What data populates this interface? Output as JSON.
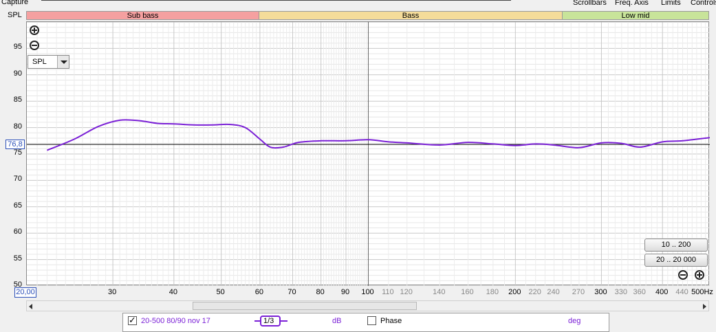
{
  "toolbar": {
    "capture": "Capture",
    "scrollbars": "Scrollbars",
    "freq_axis": "Freq. Axis",
    "limits": "Limits",
    "controls": "Controls"
  },
  "graph": {
    "y_axis_label": "SPL",
    "bands": [
      {
        "label": "Sub bass",
        "color": "#f5a0a0"
      },
      {
        "label": "Bass",
        "color": "#f5dc9a"
      },
      {
        "label": "Low mid",
        "color": "#c8e49a"
      }
    ],
    "y_ticks": [
      "95",
      "90",
      "85",
      "80",
      "75",
      "70",
      "65",
      "60",
      "55",
      "50"
    ],
    "x_ticks": [
      {
        "label": "30",
        "f": 30,
        "minor": false
      },
      {
        "label": "40",
        "f": 40,
        "minor": false
      },
      {
        "label": "50",
        "f": 50,
        "minor": false
      },
      {
        "label": "60",
        "f": 60,
        "minor": false
      },
      {
        "label": "70",
        "f": 70,
        "minor": false
      },
      {
        "label": "80",
        "f": 80,
        "minor": false
      },
      {
        "label": "90",
        "f": 90,
        "minor": false
      },
      {
        "label": "100",
        "f": 100,
        "minor": false
      },
      {
        "label": "110",
        "f": 110,
        "minor": true
      },
      {
        "label": "120",
        "f": 120,
        "minor": true
      },
      {
        "label": "140",
        "f": 140,
        "minor": true
      },
      {
        "label": "160",
        "f": 160,
        "minor": true
      },
      {
        "label": "180",
        "f": 180,
        "minor": true
      },
      {
        "label": "200",
        "f": 200,
        "minor": false
      },
      {
        "label": "220",
        "f": 220,
        "minor": true
      },
      {
        "label": "240",
        "f": 240,
        "minor": true
      },
      {
        "label": "270",
        "f": 270,
        "minor": true
      },
      {
        "label": "300",
        "f": 300,
        "minor": false
      },
      {
        "label": "330",
        "f": 330,
        "minor": true
      },
      {
        "label": "360",
        "f": 360,
        "minor": true
      },
      {
        "label": "400",
        "f": 400,
        "minor": false
      },
      {
        "label": "440",
        "f": 440,
        "minor": true
      },
      {
        "label": "500Hz",
        "f": 500,
        "minor": false
      }
    ],
    "cursor_y": "76,8",
    "cursor_x": "20,00",
    "cursor_db": 76.8,
    "vertical_marker_hz": 100,
    "unit_select": "SPL",
    "range_buttons": [
      "10 .. 200",
      "20 .. 20 000"
    ],
    "trace_color": "#7a1fd6"
  },
  "chart_data": {
    "type": "line",
    "title": "",
    "xlabel": "",
    "ylabel": "SPL",
    "x_scale": "log",
    "xlim": [
      20,
      500
    ],
    "ylim": [
      50,
      100
    ],
    "series": [
      {
        "name": "20-500 80/90 nov 17",
        "x": [
          22,
          25,
          28,
          31,
          34,
          37,
          40,
          44,
          48,
          52,
          56,
          60,
          63,
          67,
          72,
          80,
          90,
          100,
          110,
          120,
          140,
          160,
          180,
          200,
          220,
          240,
          270,
          300,
          330,
          360,
          400,
          440,
          500
        ],
        "y": [
          75.7,
          77.8,
          80.2,
          81.4,
          81.3,
          80.8,
          80.7,
          80.5,
          80.5,
          80.6,
          80.0,
          77.8,
          76.3,
          76.3,
          77.2,
          77.5,
          77.5,
          77.7,
          77.3,
          77.1,
          76.7,
          77.2,
          76.9,
          76.6,
          76.9,
          76.7,
          76.2,
          77.1,
          77.0,
          76.3,
          77.3,
          77.5,
          78.1
        ]
      }
    ]
  },
  "scrollbar": {
    "left_arrow": "left-arrow",
    "right_arrow": "right-arrow"
  },
  "legend": {
    "trace_name": "20-500 80/90 nov 17",
    "smoothing": "1/3",
    "unit": "dB",
    "phase_label": "Phase",
    "phase_unit": "deg"
  }
}
